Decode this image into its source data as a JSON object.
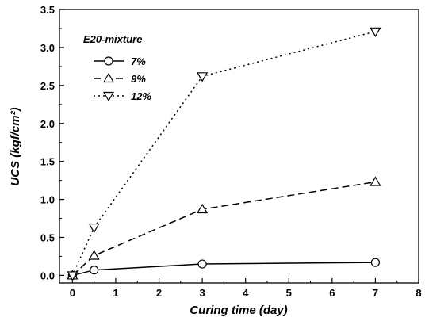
{
  "chart_data": {
    "type": "line",
    "xlabel": "Curing time (day)",
    "ylabel": "UCS (kgf/cm²)",
    "xlim": [
      -0.3,
      8
    ],
    "ylim": [
      -0.1,
      3.5
    ],
    "xticks": [
      0,
      1,
      2,
      3,
      4,
      5,
      6,
      7,
      8
    ],
    "yticks": [
      0.0,
      0.5,
      1.0,
      1.5,
      2.0,
      2.5,
      3.0,
      3.5
    ],
    "xtick_labels": [
      "0",
      "1",
      "2",
      "3",
      "4",
      "5",
      "6",
      "7",
      "8"
    ],
    "ytick_labels": [
      "0.0",
      "0.5",
      "1.0",
      "1.5",
      "2.0",
      "2.5",
      "3.0",
      "3.5"
    ],
    "legend": {
      "title": "E20-mixture",
      "position": "top-left"
    },
    "grid": false,
    "x": [
      0,
      0.5,
      3,
      7
    ],
    "series": [
      {
        "name": "7%",
        "marker": "circle",
        "line_style": "solid",
        "values": [
          0.0,
          0.07,
          0.15,
          0.17
        ]
      },
      {
        "name": "9%",
        "marker": "triangle-up",
        "line_style": "dashed",
        "values": [
          0.0,
          0.26,
          0.87,
          1.23
        ]
      },
      {
        "name": "12%",
        "marker": "triangle-down",
        "line_style": "dotted",
        "values": [
          0.0,
          0.63,
          2.62,
          3.21
        ]
      }
    ]
  }
}
